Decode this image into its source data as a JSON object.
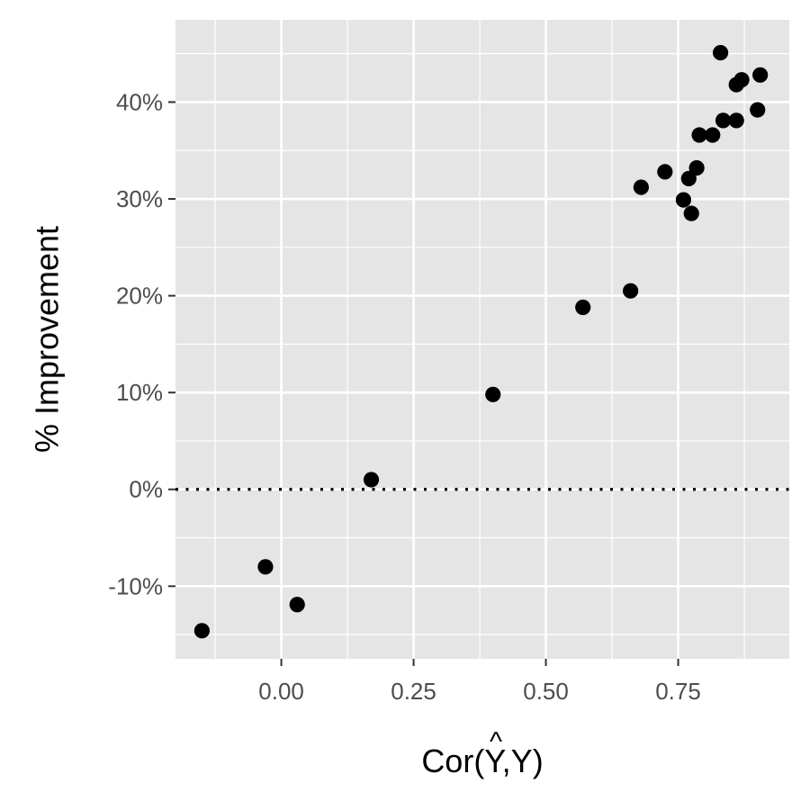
{
  "chart_data": {
    "type": "scatter",
    "title": "",
    "xlabel": "Cor(Y,Y)",
    "xlabel_hat_symbol": "^",
    "ylabel": "% Improvement",
    "xlim": [
      -0.2,
      0.96
    ],
    "ylim": [
      -17.5,
      48.5
    ],
    "x_ticks": [
      0.0,
      0.25,
      0.5,
      0.75
    ],
    "x_tick_labels": [
      "0.00",
      "0.25",
      "0.50",
      "0.75"
    ],
    "y_ticks": [
      -10,
      0,
      10,
      20,
      30,
      40
    ],
    "y_tick_labels": [
      "-10%",
      "0%",
      "10%",
      "20%",
      "30%",
      "40%"
    ],
    "grid": true,
    "reference_line": {
      "y": 0,
      "style": "dotted"
    },
    "colors": {
      "panel": "#e5e5e5",
      "grid": "#ffffff",
      "point": "#000000"
    },
    "points": [
      {
        "x": -0.15,
        "y": -14.6
      },
      {
        "x": -0.03,
        "y": -8.0
      },
      {
        "x": 0.03,
        "y": -11.9
      },
      {
        "x": 0.17,
        "y": 1.0
      },
      {
        "x": 0.4,
        "y": 9.8
      },
      {
        "x": 0.57,
        "y": 18.8
      },
      {
        "x": 0.66,
        "y": 20.5
      },
      {
        "x": 0.68,
        "y": 31.2
      },
      {
        "x": 0.725,
        "y": 32.8
      },
      {
        "x": 0.76,
        "y": 29.9
      },
      {
        "x": 0.77,
        "y": 32.1
      },
      {
        "x": 0.775,
        "y": 28.5
      },
      {
        "x": 0.785,
        "y": 33.2
      },
      {
        "x": 0.79,
        "y": 36.6
      },
      {
        "x": 0.815,
        "y": 36.6
      },
      {
        "x": 0.83,
        "y": 45.1
      },
      {
        "x": 0.835,
        "y": 38.1
      },
      {
        "x": 0.86,
        "y": 38.1
      },
      {
        "x": 0.86,
        "y": 41.8
      },
      {
        "x": 0.87,
        "y": 42.3
      },
      {
        "x": 0.9,
        "y": 39.2
      },
      {
        "x": 0.905,
        "y": 42.8
      }
    ]
  }
}
